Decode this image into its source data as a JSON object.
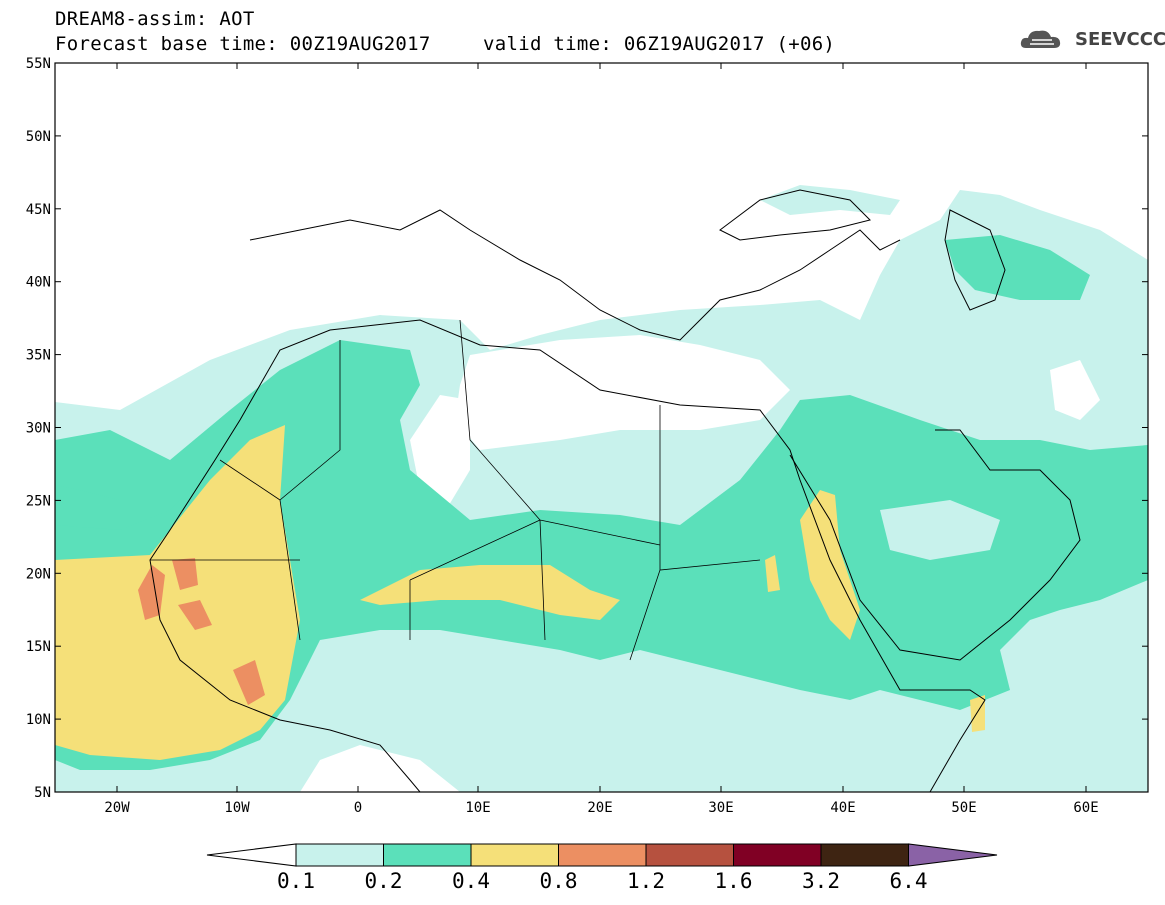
{
  "header": {
    "title": "DREAM8-assim: AOT",
    "base_time": "Forecast base time: 00Z19AUG2017",
    "valid_time": "valid time: 06Z19AUG2017 (+06)",
    "logo_text": "SEEVCCC",
    "logo_icon": "cloud-icon"
  },
  "axes": {
    "lat_labels": [
      "55N",
      "50N",
      "45N",
      "40N",
      "35N",
      "30N",
      "25N",
      "20N",
      "15N",
      "10N",
      "5N"
    ],
    "lon_labels": [
      "20W",
      "10W",
      "0",
      "10E",
      "20E",
      "30E",
      "40E",
      "50E",
      "60E"
    ]
  },
  "colorbar": {
    "labels": [
      "0.1",
      "0.2",
      "0.4",
      "0.8",
      "1.2",
      "1.6",
      "3.2",
      "6.4"
    ],
    "colors": [
      "#ffffff",
      "#c8f2ec",
      "#5be0ba",
      "#f5e079",
      "#ec8f62",
      "#b6513f",
      "#800024",
      "#3e2412",
      "#8a62a6"
    ]
  },
  "field_colors": {
    "c1": "#c8f2ec",
    "c2": "#5be0ba",
    "c3": "#f5e079",
    "c4": "#ec8f62",
    "c5": "#b6513f"
  }
}
